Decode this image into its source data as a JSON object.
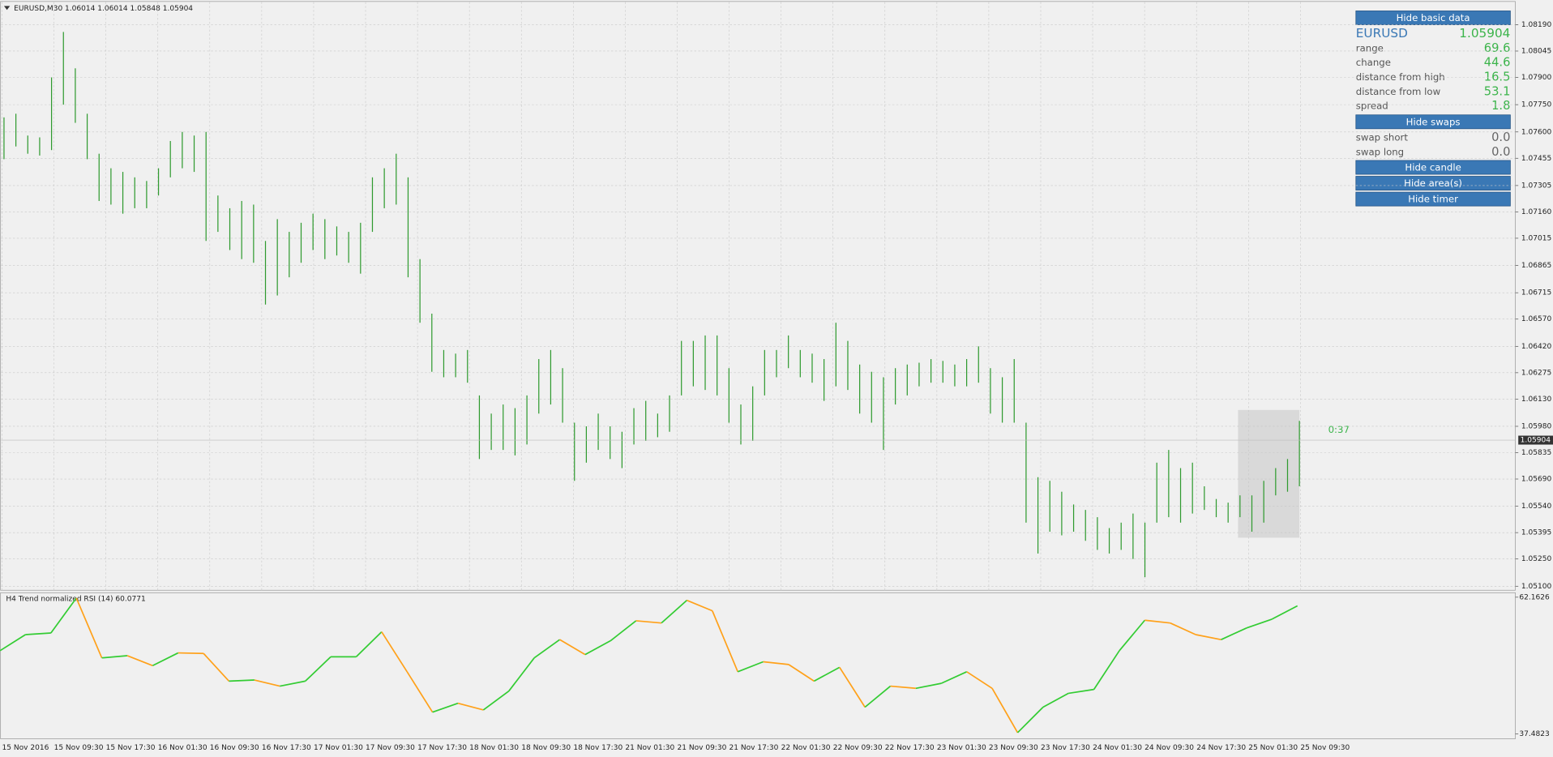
{
  "chart_data": [
    {
      "type": "ohlc",
      "title": "EURUSD,M30  1.06014 1.06014 1.05848 1.05904",
      "color": "#2f9a2f",
      "high": [
        1.0768,
        1.077,
        1.0758,
        1.0757,
        1.079,
        1.0815,
        1.0795,
        1.077,
        1.0748,
        1.074,
        1.0738,
        1.0735,
        1.0733,
        1.074,
        1.0755,
        1.076,
        1.0758,
        1.076,
        1.0725,
        1.0718,
        1.0722,
        1.072,
        1.07,
        1.0712,
        1.0705,
        1.071,
        1.0715,
        1.0712,
        1.0708,
        1.0705,
        1.071,
        1.0735,
        1.074,
        1.0748,
        1.0735,
        1.069,
        1.066,
        1.064,
        1.0638,
        1.064,
        1.0615,
        1.0605,
        1.061,
        1.0608,
        1.0615,
        1.0635,
        1.064,
        1.063,
        1.06,
        1.0598,
        1.0605,
        1.0598,
        1.0595,
        1.0608,
        1.0612,
        1.0605,
        1.0615,
        1.0645,
        1.0645,
        1.0648,
        1.0648,
        1.063,
        1.061,
        1.062,
        1.064,
        1.064,
        1.0648,
        1.064,
        1.0638,
        1.0635,
        1.0655,
        1.0645,
        1.0632,
        1.0628,
        1.0625,
        1.063,
        1.0632,
        1.0633,
        1.0635,
        1.0634,
        1.0632,
        1.0635,
        1.0642,
        1.063,
        1.0625,
        1.0635,
        1.06,
        1.057,
        1.0568,
        1.0562,
        1.0555,
        1.0552,
        1.0548,
        1.0542,
        1.0545,
        1.055,
        1.0545,
        1.0578,
        1.0585,
        1.0575,
        1.0578,
        1.0565,
        1.0558,
        1.0556,
        1.056,
        1.056,
        1.0568,
        1.0575,
        1.058,
        1.0601
      ],
      "low": [
        1.0745,
        1.0752,
        1.0748,
        1.0747,
        1.075,
        1.0775,
        1.0765,
        1.0745,
        1.0722,
        1.072,
        1.0715,
        1.0718,
        1.0718,
        1.0725,
        1.0735,
        1.074,
        1.0738,
        1.07,
        1.0705,
        1.0695,
        1.069,
        1.0688,
        1.0665,
        1.067,
        1.068,
        1.0688,
        1.0695,
        1.069,
        1.0692,
        1.0688,
        1.0682,
        1.0705,
        1.0718,
        1.072,
        1.068,
        1.0655,
        1.0628,
        1.0625,
        1.0625,
        1.0622,
        1.058,
        1.0585,
        1.0585,
        1.0582,
        1.0588,
        1.0605,
        1.061,
        1.06,
        1.0568,
        1.0578,
        1.0585,
        1.058,
        1.0575,
        1.0588,
        1.059,
        1.0592,
        1.0595,
        1.0615,
        1.062,
        1.0618,
        1.0615,
        1.06,
        1.0588,
        1.059,
        1.0615,
        1.0625,
        1.063,
        1.0625,
        1.0622,
        1.0612,
        1.062,
        1.0618,
        1.0605,
        1.06,
        1.0585,
        1.061,
        1.0615,
        1.062,
        1.0622,
        1.0622,
        1.062,
        1.062,
        1.0622,
        1.0605,
        1.06,
        1.06,
        1.0545,
        1.0528,
        1.054,
        1.0538,
        1.054,
        1.0535,
        1.053,
        1.0528,
        1.053,
        1.0525,
        1.0515,
        1.0545,
        1.0548,
        1.0545,
        1.055,
        1.0552,
        1.0548,
        1.0545,
        1.0548,
        1.054,
        1.0545,
        1.056,
        1.0562,
        1.0565
      ],
      "current_price": 1.05904,
      "ylim": [
        1.05078,
        1.08315
      ],
      "yticks": [
        {
          "value": 1.0819,
          "label": "1.08190"
        },
        1.08045,
        {
          "value": 1.079,
          "label": "1.07900"
        },
        {
          "value": 1.0775,
          "label": "1.07750"
        },
        {
          "value": 1.076,
          "label": "1.07600"
        },
        1.07455,
        1.07305,
        {
          "value": 1.0716,
          "label": "1.07160"
        },
        1.07015,
        1.06865,
        1.06715,
        {
          "value": 1.0657,
          "label": "1.06570"
        },
        {
          "value": 1.0642,
          "label": "1.06420"
        },
        1.06275,
        {
          "value": 1.0613,
          "label": "1.06130"
        },
        {
          "value": 1.0598,
          "label": "1.05980"
        },
        1.05835,
        {
          "value": 1.0569,
          "label": "1.05690"
        },
        {
          "value": 1.0554,
          "label": "1.05540"
        },
        1.05395,
        {
          "value": 1.0525,
          "label": "1.05250"
        },
        {
          "value": 1.051,
          "label": "1.05100"
        }
      ],
      "categories": [
        "15 Nov 2016",
        "15 Nov 09:30",
        "15 Nov 17:30",
        "16 Nov 01:30",
        "16 Nov 09:30",
        "16 Nov 17:30",
        "17 Nov 01:30",
        "17 Nov 09:30",
        "17 Nov 17:30",
        "18 Nov 01:30",
        "18 Nov 09:30",
        "18 Nov 17:30",
        "21 Nov 01:30",
        "21 Nov 09:30",
        "21 Nov 17:30",
        "22 Nov 01:30",
        "22 Nov 09:30",
        "22 Nov 17:30",
        "23 Nov 01:30",
        "23 Nov 09:30",
        "23 Nov 17:30",
        "24 Nov 01:30",
        "24 Nov 09:30",
        "24 Nov 17:30",
        "25 Nov 01:30",
        "25 Nov 09:30"
      ],
      "grid": true
    },
    {
      "type": "line",
      "title": "H4 Trend normalized RSI (14) 60.0771",
      "up_color": "#33cc33",
      "down_color": "#ffa11a",
      "values": [
        52.5,
        55.4,
        55.7,
        62.0,
        51.2,
        51.6,
        49.8,
        52.1,
        52.0,
        47.0,
        47.2,
        46.1,
        47.0,
        51.4,
        51.4,
        55.9,
        48.7,
        41.4,
        43.0,
        41.8,
        45.2,
        51.2,
        54.5,
        51.8,
        54.3,
        57.9,
        57.5,
        61.6,
        59.7,
        48.7,
        50.5,
        50.0,
        47.0,
        49.5,
        42.3,
        46.1,
        45.7,
        46.6,
        48.7,
        45.7,
        37.7,
        42.3,
        44.8,
        45.5,
        52.5,
        58.0,
        57.5,
        55.4,
        54.5,
        56.6,
        58.2,
        60.6
      ],
      "ylim": [
        36.59,
        63.06
      ],
      "yticks": [
        37.4823,
        62.1626
      ]
    }
  ],
  "panel": {
    "buttons": [
      "Hide basic data",
      "Hide swaps",
      "Hide candle",
      "Hide area(s)",
      "Hide timer"
    ],
    "symbol": "EURUSD",
    "price": 1.05904,
    "rows": [
      {
        "label": "range",
        "value": 69.6
      },
      {
        "label": "change",
        "value": 44.6
      },
      {
        "label": "distance from high",
        "value": 16.5
      },
      {
        "label": "distance from low",
        "value": 53.1
      },
      {
        "label": "spread",
        "value": 1.8
      }
    ],
    "swaps": [
      {
        "label": "swap short",
        "value": "0.0"
      },
      {
        "label": "swap long",
        "value": "0.0"
      }
    ],
    "timer": "0:37"
  }
}
